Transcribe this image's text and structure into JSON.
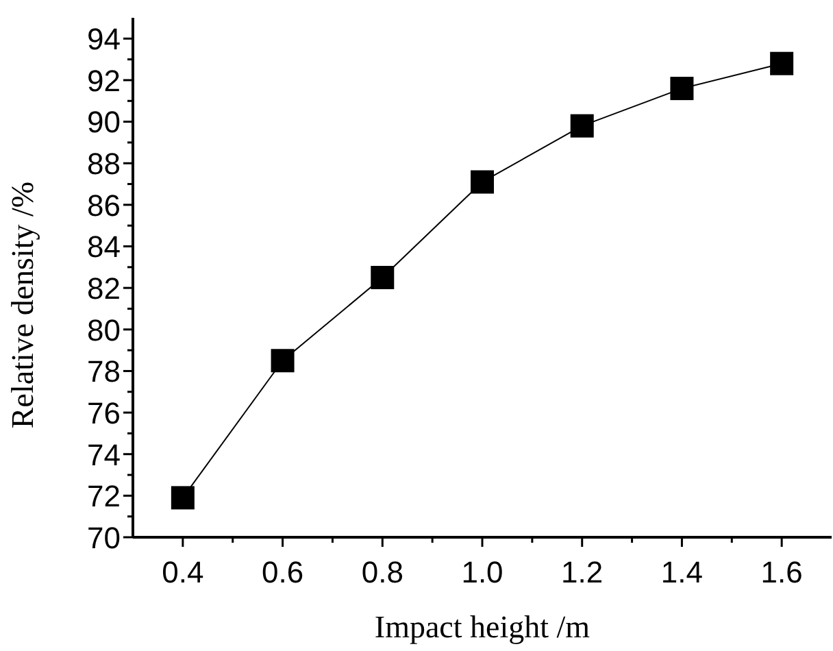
{
  "chart_data": {
    "type": "line",
    "xlabel": "Impact height /m",
    "ylabel": "Relative density /%",
    "x": [
      0.4,
      0.6,
      0.8,
      1.0,
      1.2,
      1.4,
      1.6
    ],
    "series": [
      {
        "color": "#000000",
        "values": [
          71.9,
          78.5,
          82.5,
          87.1,
          89.8,
          91.6,
          92.8
        ]
      }
    ],
    "marker": "square",
    "line_style": "solid",
    "grid": false,
    "xlim": [
      0.3,
      1.7
    ],
    "xticks": [
      0.4,
      {
        "value": 0.5,
        "label": null
      },
      0.6,
      {
        "value": 0.7,
        "label": null
      },
      0.8,
      {
        "value": 0.9,
        "label": null
      },
      {
        "value": 1.0,
        "label": "1.0"
      },
      {
        "value": 1.1,
        "label": null
      },
      1.2,
      {
        "value": 1.3,
        "label": null
      },
      1.4,
      {
        "value": 1.5,
        "label": null
      },
      1.6
    ],
    "ylim": [
      70,
      95
    ],
    "yticks": [
      70,
      {
        "value": 71,
        "label": null
      },
      72,
      {
        "value": 73,
        "label": null
      },
      74,
      {
        "value": 75,
        "label": null
      },
      76,
      {
        "value": 77,
        "label": null
      },
      78,
      {
        "value": 79,
        "label": null
      },
      80,
      {
        "value": 81,
        "label": null
      },
      82,
      {
        "value": 83,
        "label": null
      },
      84,
      {
        "value": 85,
        "label": null
      },
      86,
      {
        "value": 87,
        "label": null
      },
      88,
      {
        "value": 89,
        "label": null
      },
      90,
      {
        "value": 91,
        "label": null
      },
      92,
      {
        "value": 93,
        "label": null
      },
      94
    ]
  }
}
